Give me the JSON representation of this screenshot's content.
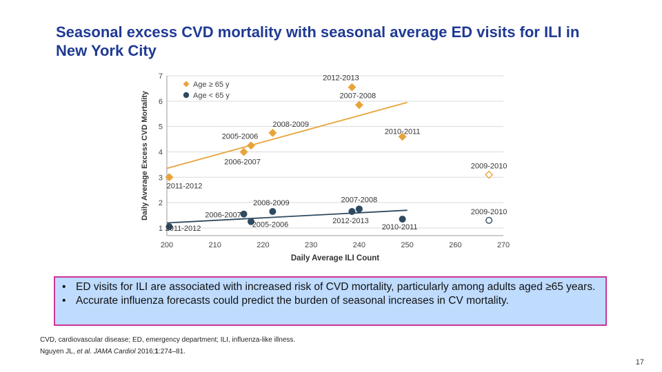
{
  "slide": {
    "title": "Seasonal excess CVD mortality with seasonal average ED visits for ILI in New York City",
    "bullets": [
      "ED visits for ILI are associated with increased risk of CVD mortality, particularly among adults aged ≥65 years.",
      "Accurate influenza forecasts could predict the burden of seasonal increases in CV mortality."
    ],
    "bullet_glyph": "•",
    "abbreviations": "CVD, cardiovascular disease; ED, emergency department; ILI, influenza-like illness.",
    "citation": {
      "authors": "Nguyen JL, ",
      "etal": "et al.",
      "journal": "JAMA Cardiol",
      "year": " 2016;",
      "volume": "1",
      "pages": ":274–81."
    },
    "page_number": "17"
  },
  "colors": {
    "title": "#1f3a93",
    "orange": "#e8a33a",
    "navy": "#2e4a60",
    "callout_border": "#cc3399",
    "callout_bg": "#bfdcff"
  },
  "chart_data": {
    "type": "scatter",
    "xlabel": "Daily Average ILI Count",
    "ylabel": "Daily Average Excess CVD Mortality",
    "xlim": [
      200,
      270
    ],
    "ylim": [
      0.7,
      7
    ],
    "xticks": [
      200,
      210,
      220,
      230,
      240,
      250,
      260,
      270
    ],
    "yticks": [
      1,
      2,
      3,
      4,
      5,
      6,
      7
    ],
    "grid": true,
    "legend_position": "top-left",
    "series": [
      {
        "name": "Age ≥ 65 y",
        "color": "#e8a33a",
        "marker": "diamond",
        "points": [
          {
            "label": "2011-2012",
            "x": 200.5,
            "y": 3.0
          },
          {
            "label": "2006-2007",
            "x": 216,
            "y": 4.0
          },
          {
            "label": "2005-2006",
            "x": 217.5,
            "y": 4.25
          },
          {
            "label": "2008-2009",
            "x": 222,
            "y": 4.75
          },
          {
            "label": "2012-2013",
            "x": 238.5,
            "y": 6.55
          },
          {
            "label": "2007-2008",
            "x": 240,
            "y": 5.85
          },
          {
            "label": "2010-2011",
            "x": 249,
            "y": 4.6
          },
          {
            "label": "2009-2010",
            "x": 267,
            "y": 3.1,
            "hollow": true
          }
        ],
        "trend": {
          "x": [
            200,
            250
          ],
          "y": [
            3.35,
            5.95
          ]
        }
      },
      {
        "name": "Age < 65 y",
        "color": "#2e4a60",
        "marker": "circle",
        "points": [
          {
            "label": "2011-2012",
            "x": 200.5,
            "y": 1.05
          },
          {
            "label": "2006-2007",
            "x": 216,
            "y": 1.55
          },
          {
            "label": "2005-2006",
            "x": 217.5,
            "y": 1.25
          },
          {
            "label": "2008-2009",
            "x": 222,
            "y": 1.65
          },
          {
            "label": "2012-2013",
            "x": 238.5,
            "y": 1.65
          },
          {
            "label": "2007-2008",
            "x": 240,
            "y": 1.75
          },
          {
            "label": "2010-2011",
            "x": 249,
            "y": 1.35
          },
          {
            "label": "2009-2010",
            "x": 267,
            "y": 1.3,
            "hollow": true
          }
        ],
        "trend": {
          "x": [
            200,
            250
          ],
          "y": [
            1.2,
            1.7
          ]
        }
      }
    ]
  }
}
